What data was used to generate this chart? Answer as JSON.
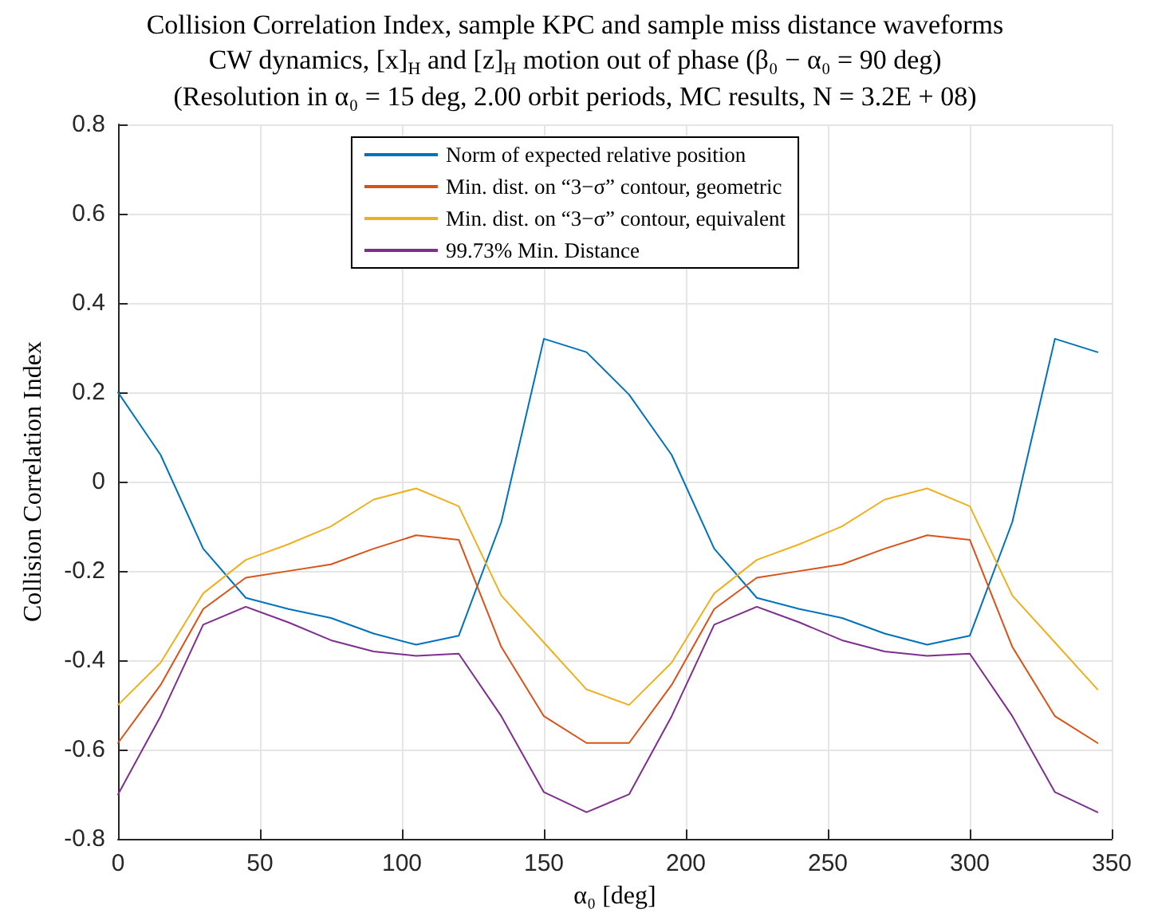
{
  "chart_data": {
    "type": "line",
    "title": "Collision Correlation Index, sample KPC and sample miss distance waveforms",
    "subtitle": "CW dynamics, [x]$_{H}$ and [z]$_{H}$ motion out of phase (β₀ − α₀ = 90 deg)\n(Resolution in α₀ = 15 deg, 2.00 orbit periods, MC results, N = 3.2E + 08)",
    "xlabel": "α₀ [deg]",
    "ylabel": "Collision Correlation Index",
    "x": [
      0,
      15,
      30,
      45,
      60,
      75,
      90,
      105,
      120,
      135,
      150,
      165,
      180,
      195,
      210,
      225,
      240,
      255,
      270,
      285,
      300,
      315,
      330,
      345
    ],
    "series": [
      {
        "name": "Norm of expected relative position",
        "color": "#0072bd",
        "values": [
          0.2,
          0.06,
          -0.15,
          -0.26,
          -0.285,
          -0.305,
          -0.34,
          -0.365,
          -0.345,
          -0.09,
          0.32,
          0.29,
          0.195,
          0.06,
          -0.15,
          -0.26,
          -0.285,
          -0.305,
          -0.34,
          -0.365,
          -0.345,
          -0.09,
          0.32,
          0.29
        ]
      },
      {
        "name": "Min. dist. on “3−σ” contour, geometric",
        "color": "#d95319",
        "values": [
          -0.585,
          -0.455,
          -0.285,
          -0.215,
          -0.2,
          -0.185,
          -0.15,
          -0.12,
          -0.13,
          -0.37,
          -0.525,
          -0.585,
          -0.585,
          -0.455,
          -0.285,
          -0.215,
          -0.2,
          -0.185,
          -0.15,
          -0.12,
          -0.13,
          -0.37,
          -0.525,
          -0.585
        ]
      },
      {
        "name": "Min. dist. on “3−σ” contour, equivalent",
        "color": "#edb120",
        "values": [
          -0.5,
          -0.405,
          -0.25,
          -0.175,
          -0.14,
          -0.1,
          -0.04,
          -0.015,
          -0.055,
          -0.255,
          -0.36,
          -0.465,
          -0.5,
          -0.405,
          -0.25,
          -0.175,
          -0.14,
          -0.1,
          -0.04,
          -0.015,
          -0.055,
          -0.255,
          -0.36,
          -0.465
        ]
      },
      {
        "name": "99.73% Min. Distance",
        "color": "#7e2f8e",
        "values": [
          -0.7,
          -0.525,
          -0.32,
          -0.28,
          -0.315,
          -0.355,
          -0.38,
          -0.39,
          -0.385,
          -0.525,
          -0.695,
          -0.74,
          -0.7,
          -0.525,
          -0.32,
          -0.28,
          -0.315,
          -0.355,
          -0.38,
          -0.39,
          -0.385,
          -0.525,
          -0.695,
          -0.74
        ]
      }
    ],
    "xlim": [
      0,
      350
    ],
    "xticks": [
      0,
      50,
      100,
      150,
      200,
      250,
      300,
      350
    ],
    "ylim": [
      -0.8,
      0.8
    ],
    "yticks": [
      -0.8,
      -0.6,
      -0.4,
      -0.2,
      0,
      0.2,
      0.4,
      0.6,
      0.8
    ],
    "grid": true,
    "legend": "top",
    "marker": "none",
    "line_style": "solid"
  }
}
